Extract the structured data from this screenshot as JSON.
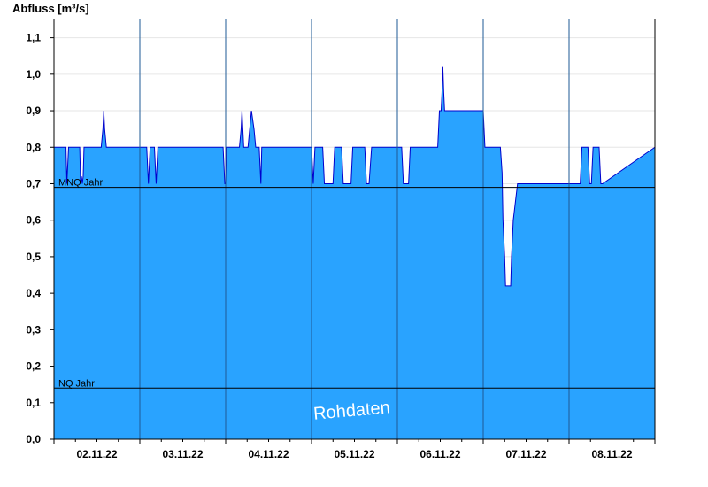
{
  "chart_data": {
    "type": "area",
    "ylabel": "Abfluss [m³/s]",
    "ylim": [
      0,
      1.15
    ],
    "y_ticks": [
      "0,0",
      "0,1",
      "0,2",
      "0,3",
      "0,4",
      "0,5",
      "0,6",
      "0,7",
      "0,8",
      "0,9",
      "1,0",
      "1,1"
    ],
    "y_tick_values": [
      0,
      0.1,
      0.2,
      0.3,
      0.4,
      0.5,
      0.6,
      0.7,
      0.8,
      0.9,
      1.0,
      1.1
    ],
    "x_unit": "days since 01.11.22 00:00",
    "xlim": [
      2.0,
      9.0
    ],
    "x_tick_labels": [
      "02.11.22",
      "03.11.22",
      "04.11.22",
      "05.11.22",
      "06.11.22",
      "07.11.22",
      "08.11.22"
    ],
    "x_tick_label_positions": [
      2.5,
      3.5,
      4.5,
      5.5,
      6.5,
      7.5,
      8.5
    ],
    "day_boundaries": [
      3,
      4,
      5,
      6,
      7,
      8
    ],
    "fill_color": "#29a3ff",
    "line_color": "#0000cc",
    "reference_lines": [
      {
        "name": "MNQ Jahr",
        "value": 0.69
      },
      {
        "name": "NQ Jahr",
        "value": 0.14
      }
    ],
    "annotation": "Rohdaten",
    "grid": "horizontal",
    "series": [
      {
        "values_x": [
          2.0,
          2.14,
          2.15,
          2.17,
          2.3,
          2.31,
          2.32,
          2.33,
          2.34,
          2.35,
          2.36,
          2.37,
          2.55,
          2.57,
          2.58,
          2.59,
          2.61,
          3.08,
          3.1,
          3.12,
          3.17,
          3.19,
          3.21,
          3.27,
          3.29,
          3.97,
          3.99,
          4.0,
          4.01,
          4.03,
          4.16,
          4.18,
          4.19,
          4.21,
          4.26,
          4.28,
          4.3,
          4.33,
          4.35,
          4.39,
          4.41,
          4.42,
          4.45,
          4.47,
          5.0,
          5.02,
          5.04,
          5.13,
          5.15,
          5.25,
          5.27,
          5.29,
          5.3,
          5.35,
          5.37,
          5.46,
          5.48,
          5.5,
          5.62,
          5.64,
          5.65,
          5.67,
          5.7,
          5.71,
          6.05,
          6.07,
          6.08,
          6.13,
          6.15,
          6.4,
          6.47,
          6.49,
          6.51,
          6.52,
          6.53,
          6.54,
          6.55,
          6.56,
          7.0,
          7.02,
          7.04,
          7.06,
          7.08,
          7.1,
          7.2,
          7.22,
          7.23,
          7.25,
          7.26,
          7.28,
          7.3,
          7.32,
          7.33,
          7.35,
          7.4,
          7.42,
          7.44,
          8.1,
          8.12,
          8.13,
          8.15,
          8.22,
          8.24,
          8.26,
          8.28,
          8.35,
          8.37,
          8.39,
          9.0
        ],
        "values_y": [
          0.8,
          0.8,
          0.7,
          0.8,
          0.8,
          0.7,
          0.72,
          0.7,
          0.72,
          0.8,
          0.8,
          0.8,
          0.8,
          0.85,
          0.9,
          0.85,
          0.8,
          0.8,
          0.7,
          0.8,
          0.8,
          0.7,
          0.8,
          0.8,
          0.8,
          0.8,
          0.7,
          0.7,
          0.8,
          0.8,
          0.8,
          0.85,
          0.9,
          0.8,
          0.8,
          0.85,
          0.9,
          0.85,
          0.8,
          0.8,
          0.7,
          0.8,
          0.8,
          0.8,
          0.8,
          0.7,
          0.8,
          0.8,
          0.7,
          0.7,
          0.8,
          0.8,
          0.8,
          0.8,
          0.7,
          0.7,
          0.8,
          0.8,
          0.8,
          0.7,
          0.7,
          0.7,
          0.8,
          0.8,
          0.8,
          0.7,
          0.7,
          0.7,
          0.8,
          0.8,
          0.8,
          0.9,
          0.9,
          0.95,
          1.02,
          0.95,
          0.9,
          0.9,
          0.9,
          0.8,
          0.8,
          0.8,
          0.8,
          0.8,
          0.8,
          0.73,
          0.6,
          0.5,
          0.42,
          0.42,
          0.42,
          0.42,
          0.5,
          0.6,
          0.7,
          0.7,
          0.7,
          0.7,
          0.7,
          0.7,
          0.8,
          0.8,
          0.7,
          0.7,
          0.8,
          0.8,
          0.7,
          0.7,
          0.8
        ]
      }
    ]
  }
}
